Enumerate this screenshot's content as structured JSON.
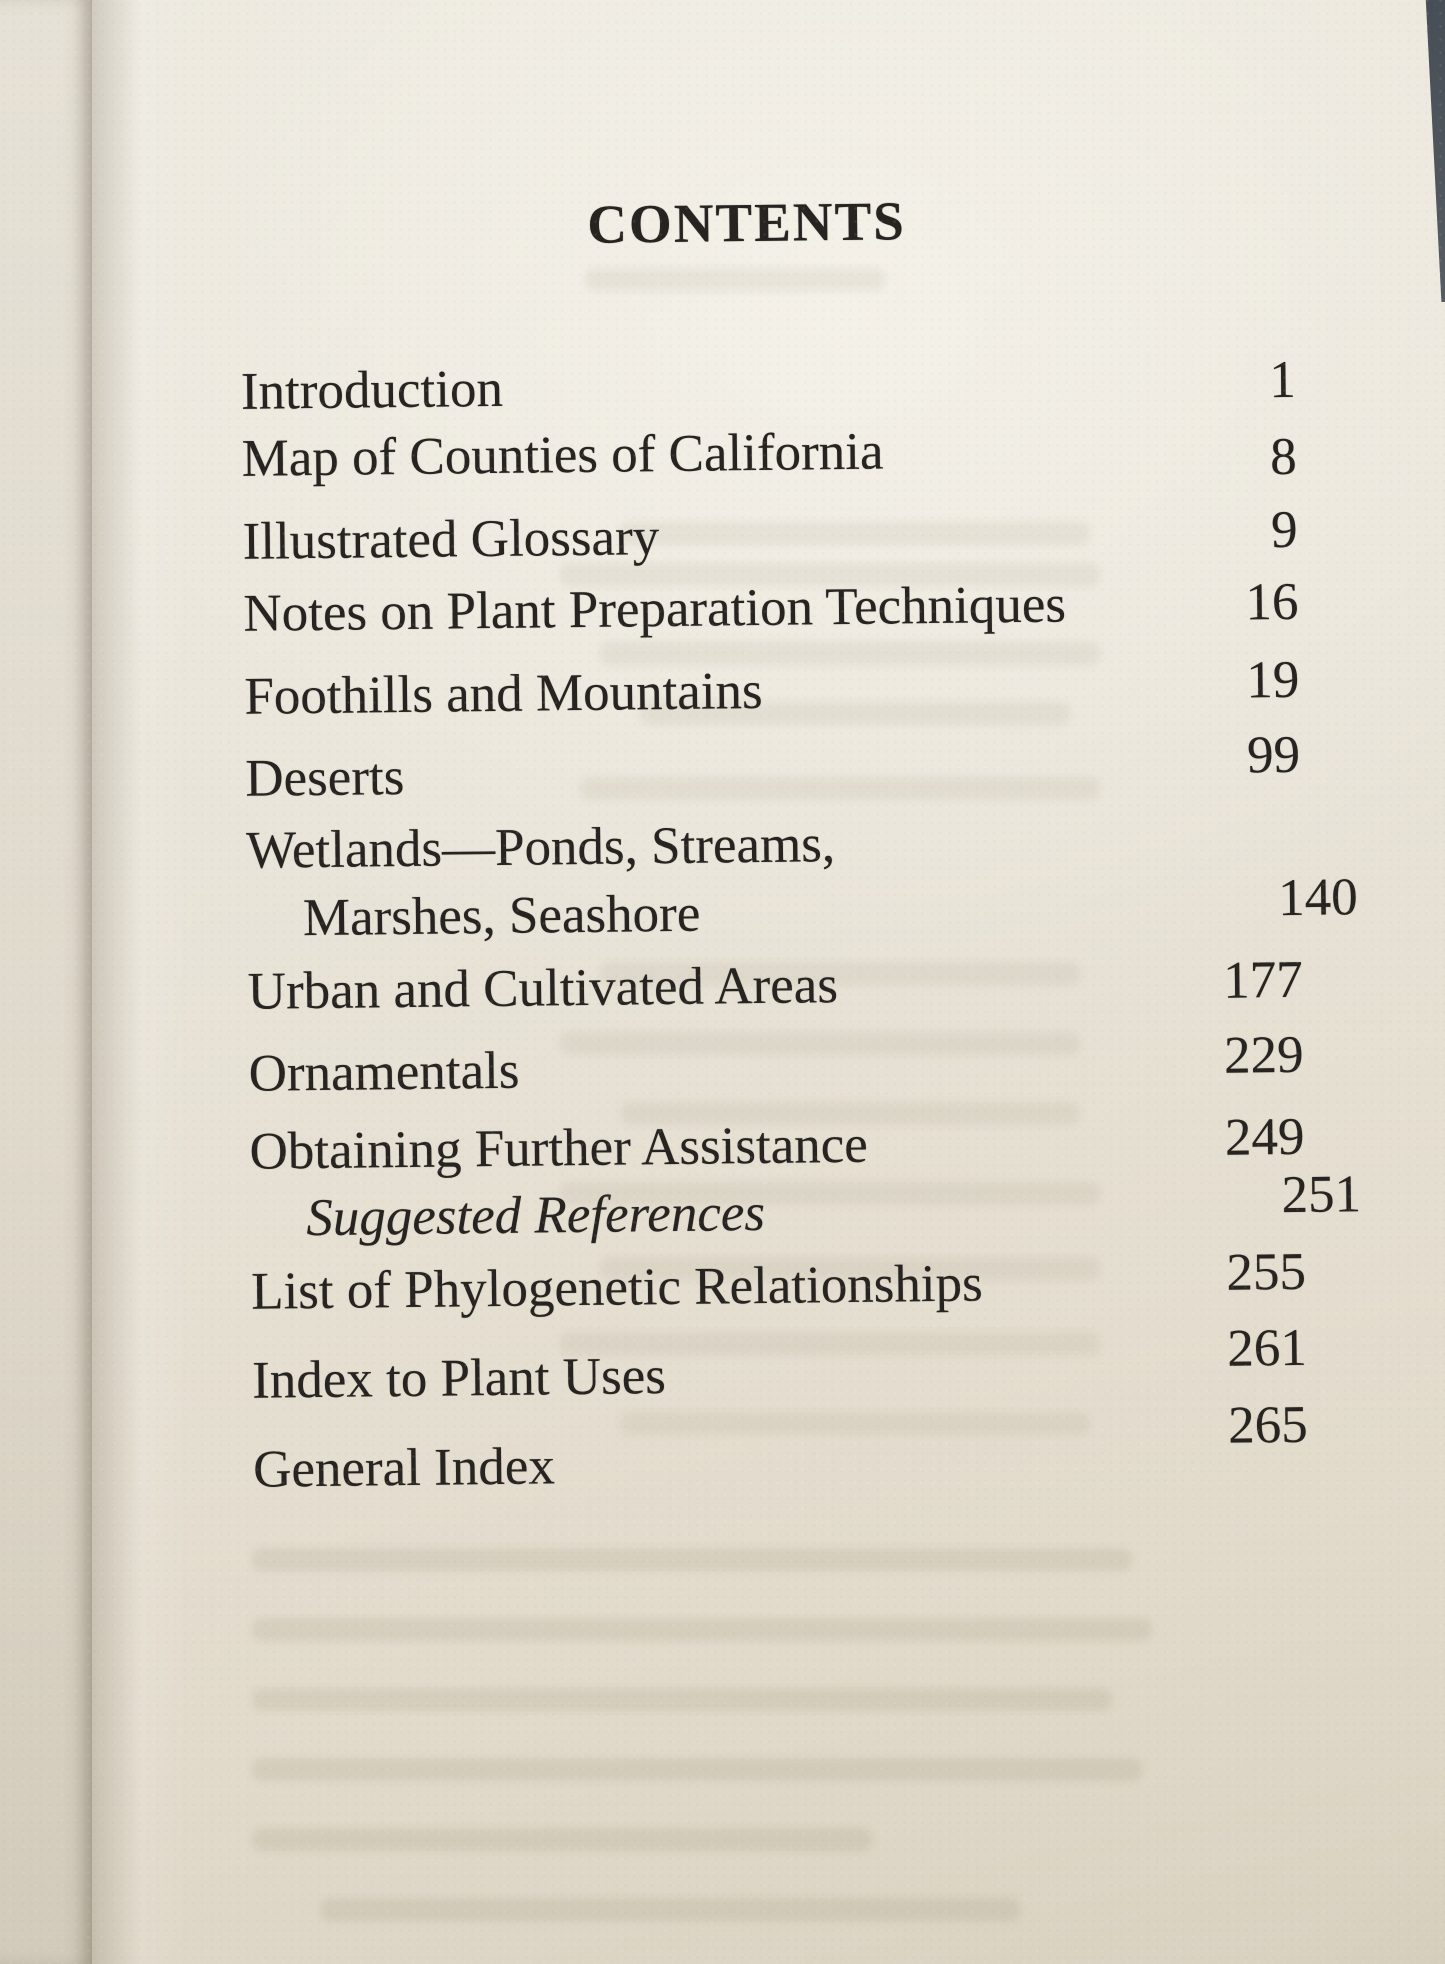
{
  "page": {
    "title": "CONTENTS",
    "toc": [
      {
        "label": "Introduction",
        "page": "1"
      },
      {
        "label": "Map of Counties of California",
        "page": "8"
      },
      {
        "label": "Illustrated Glossary",
        "page": "9"
      },
      {
        "label": "Notes on Plant Preparation Techniques",
        "page": "16"
      },
      {
        "label": "Foothills and Mountains",
        "page": "19"
      },
      {
        "label": "Deserts",
        "page": "99"
      },
      {
        "label": "Wetlands—Ponds, Streams,",
        "page": ""
      },
      {
        "label": "Marshes, Seashore",
        "page": "140"
      },
      {
        "label": "Urban and Cultivated Areas",
        "page": "177"
      },
      {
        "label": "Ornamentals",
        "page": "229"
      },
      {
        "label": "Obtaining Further Assistance",
        "page": "249"
      },
      {
        "label": "Suggested References",
        "page": "251"
      },
      {
        "label": "List of Phylogenetic Relationships",
        "page": "255"
      },
      {
        "label": "Index to Plant Uses",
        "page": "261"
      },
      {
        "label": "General Index",
        "page": "265"
      }
    ]
  },
  "colors": {
    "paper": "#e8e3d8",
    "ink": "#262320",
    "background_corner": "#4e555c"
  }
}
